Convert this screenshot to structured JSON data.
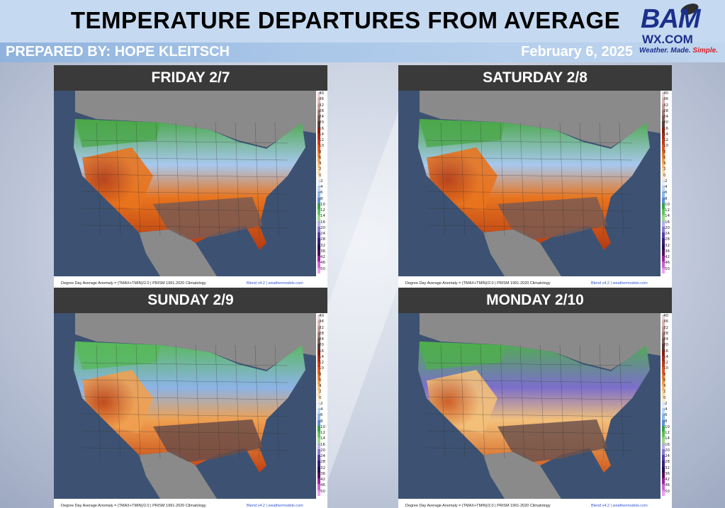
{
  "header": {
    "title": "TEMPERATURE DEPARTURES FROM AVERAGE",
    "prepared_by": "PREPARED BY: HOPE KLEITSCH",
    "date": "February 6, 2025"
  },
  "logo": {
    "bam": "BAM",
    "wx": "WX.COM",
    "tagline_a": "Weather. Made.",
    "tagline_b": " Simple."
  },
  "panels": [
    {
      "title": "FRIDAY 2/7",
      "palette": "warm"
    },
    {
      "title": "SATURDAY 2/8",
      "palette": "warm"
    },
    {
      "title": "SUNDAY 2/9",
      "palette": "mixed"
    },
    {
      "title": "MONDAY 2/10",
      "palette": "cool"
    }
  ],
  "map_footer": {
    "left": "Degree Day Average Anomaly = (TMAX+TMIN)/2.0 | PRISM 1991-2020 Climatology",
    "right": "Blend v4.2 | weathermodels.com"
  },
  "scale_labels": [
    "40",
    "36",
    "32",
    "28",
    "24",
    "20",
    "16",
    "14",
    "12",
    "10",
    "8",
    "6",
    "4",
    "2",
    "0",
    "-2",
    "-4",
    "-6",
    "-8",
    "-10",
    "-12",
    "-14",
    "-16",
    "-20",
    "-24",
    "-28",
    "-32",
    "-36",
    "-42",
    "-46",
    "-50"
  ],
  "colors": {
    "ocean": "#3d5272",
    "land_outside": "#8a8a8a",
    "panel_header": "#3a3a3a"
  }
}
